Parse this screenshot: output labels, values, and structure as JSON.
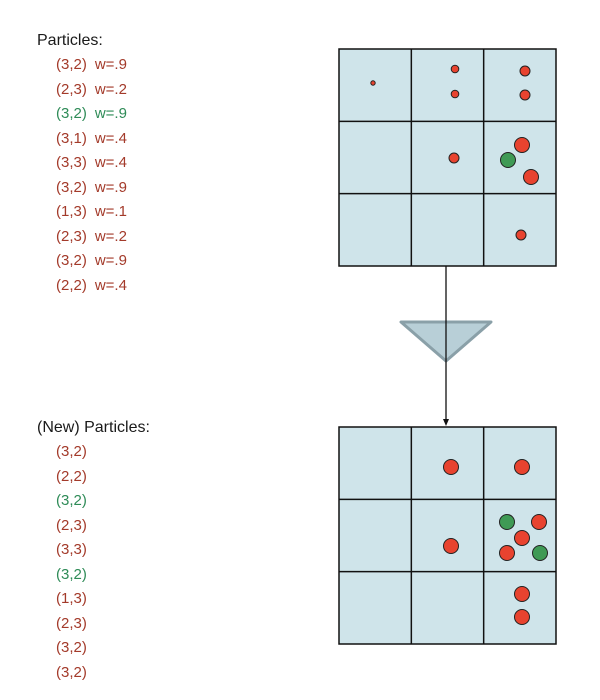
{
  "colors": {
    "cell_fill": "#cfe4ea",
    "grid_line": "#111111",
    "particle_red": "#e8432f",
    "particle_green": "#3f9a55",
    "arrow_fill": "#b8cfd7",
    "arrow_stroke": "#8aa0a8",
    "text_red": "#a33a2a",
    "text_green": "#2e8b57"
  },
  "particles": {
    "heading": "Particles:",
    "items": [
      {
        "pos": "(3,2)",
        "weight": "w=.9",
        "color": "red"
      },
      {
        "pos": "(2,3)",
        "weight": "w=.2",
        "color": "red"
      },
      {
        "pos": "(3,2)",
        "weight": "w=.9",
        "color": "green"
      },
      {
        "pos": "(3,1)",
        "weight": "w=.4",
        "color": "red"
      },
      {
        "pos": "(3,3)",
        "weight": "w=.4",
        "color": "red"
      },
      {
        "pos": "(3,2)",
        "weight": "w=.9",
        "color": "red"
      },
      {
        "pos": "(1,3)",
        "weight": "w=.1",
        "color": "red"
      },
      {
        "pos": "(2,3)",
        "weight": "w=.2",
        "color": "red"
      },
      {
        "pos": "(3,2)",
        "weight": "w=.9",
        "color": "red"
      },
      {
        "pos": "(2,2)",
        "weight": "w=.4",
        "color": "red"
      }
    ]
  },
  "new_particles": {
    "heading": "(New) Particles:",
    "items": [
      {
        "pos": "(3,2)",
        "color": "red"
      },
      {
        "pos": "(2,2)",
        "color": "red"
      },
      {
        "pos": "(3,2)",
        "color": "green"
      },
      {
        "pos": "(2,3)",
        "color": "red"
      },
      {
        "pos": "(3,3)",
        "color": "red"
      },
      {
        "pos": "(3,2)",
        "color": "green"
      },
      {
        "pos": "(1,3)",
        "color": "red"
      },
      {
        "pos": "(2,3)",
        "color": "red"
      },
      {
        "pos": "(3,2)",
        "color": "red"
      },
      {
        "pos": "(3,2)",
        "color": "red"
      }
    ]
  }
}
